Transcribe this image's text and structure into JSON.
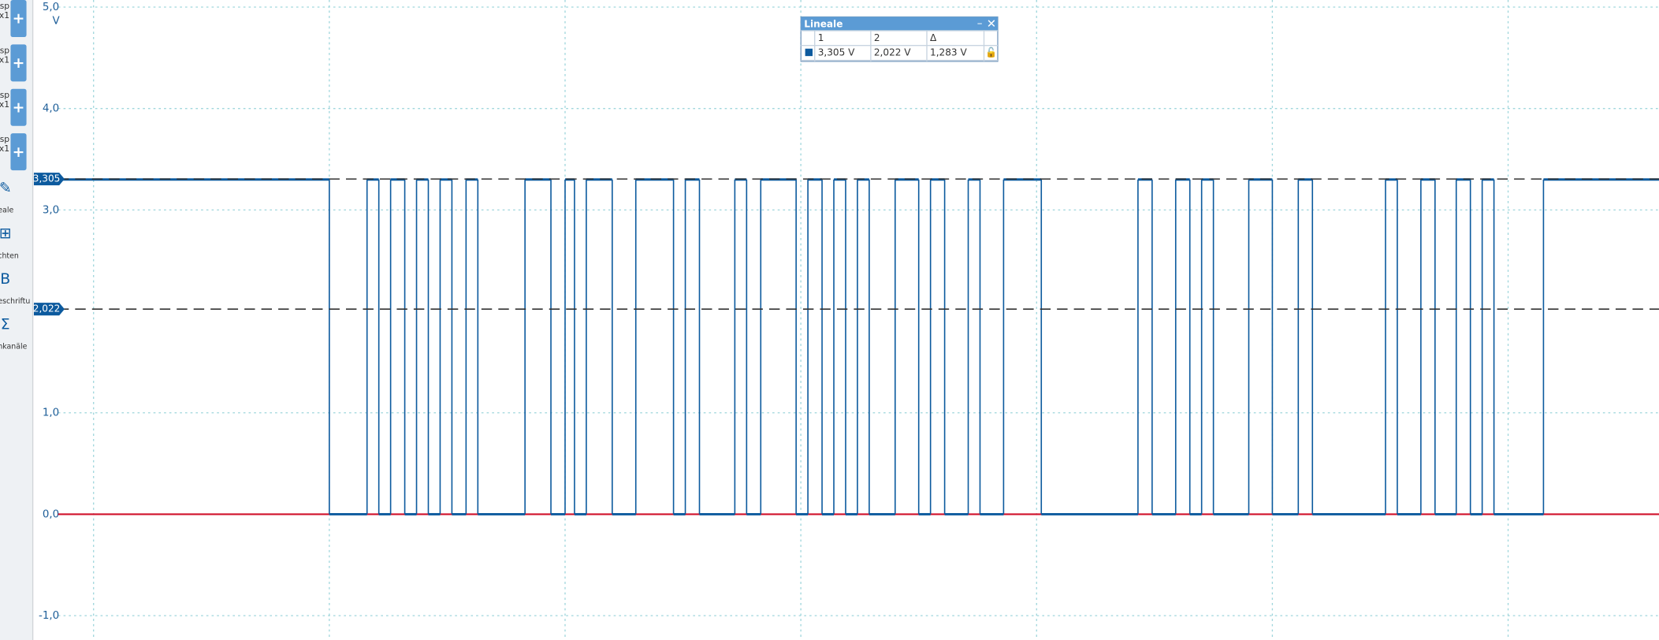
{
  "sidebar": {
    "channels": [
      {
        "label": "hsp",
        "scale": "x1"
      },
      {
        "label": "hsp",
        "scale": "x1"
      },
      {
        "label": "hsp",
        "scale": "x1"
      },
      {
        "label": "hsp",
        "scale": "x1"
      }
    ],
    "tools": [
      "eale",
      "chten",
      "eschriftu",
      "nkanäle"
    ]
  },
  "chart_data": {
    "type": "line",
    "step": true,
    "y_unit": "V",
    "ylim": [
      -1.24,
      5.07
    ],
    "yticks": [
      {
        "value": 5,
        "label": "5,0"
      },
      {
        "value": 4,
        "label": "4,0"
      },
      {
        "value": 3,
        "label": "3,0"
      },
      {
        "value": 1,
        "label": "1,0"
      },
      {
        "value": 0,
        "label": "0,0"
      },
      {
        "value": -1,
        "label": "-1,0"
      }
    ],
    "xlim": [
      -0.15,
      6.64
    ],
    "xgrid": [
      0,
      1,
      2,
      3,
      4,
      5,
      6
    ],
    "grid": true,
    "series": [
      {
        "color": "#d0102a",
        "step": false,
        "x": [
          -0.15,
          6.64
        ],
        "values": [
          0,
          0
        ]
      },
      {
        "color": "#0c5a9e",
        "step": true,
        "x": [
          -0.15,
          1.0,
          1.16,
          1.21,
          1.26,
          1.32,
          1.37,
          1.42,
          1.47,
          1.52,
          1.58,
          1.63,
          1.83,
          1.94,
          2.0,
          2.04,
          2.09,
          2.2,
          2.3,
          2.46,
          2.51,
          2.57,
          2.72,
          2.77,
          2.83,
          2.98,
          3.03,
          3.09,
          3.14,
          3.19,
          3.24,
          3.29,
          3.4,
          3.5,
          3.55,
          3.61,
          3.71,
          3.76,
          3.86,
          4.02,
          4.43,
          4.49,
          4.59,
          4.65,
          4.7,
          4.75,
          4.9,
          5.0,
          5.11,
          5.17,
          5.48,
          5.53,
          5.63,
          5.69,
          5.78,
          5.84,
          5.89,
          5.94,
          6.15
        ],
        "values": [
          3.3,
          0,
          3.3,
          0,
          3.3,
          0,
          3.3,
          0,
          3.3,
          0,
          3.3,
          0,
          3.3,
          0,
          3.3,
          0,
          3.3,
          0,
          3.3,
          0,
          3.3,
          0,
          3.3,
          0,
          3.3,
          0,
          3.3,
          0,
          3.3,
          0,
          3.3,
          0,
          3.3,
          0,
          3.3,
          0,
          3.3,
          0,
          3.3,
          0,
          3.3,
          0,
          3.3,
          0,
          3.3,
          0,
          3.3,
          0,
          3.3,
          0,
          3.3,
          0,
          3.3,
          0,
          3.3,
          0,
          3.3,
          0,
          3.3
        ]
      }
    ],
    "rulers": [
      {
        "value": 3.305,
        "label": "3,305"
      },
      {
        "value": 2.022,
        "label": "2,022"
      }
    ]
  },
  "ruler_table": {
    "title": "Lineale",
    "headers": [
      "1",
      "2",
      "Δ"
    ],
    "row": [
      "3,305 V",
      "2,022 V",
      "1,283 V"
    ]
  }
}
